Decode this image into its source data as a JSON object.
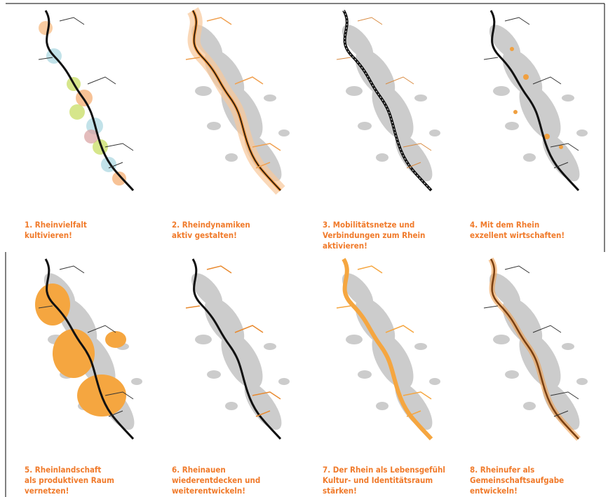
{
  "panels": [
    {
      "caption": {
        "lines": [
          "1. Rheinvielfalt",
          "kultivieren!"
        ]
      }
    },
    {
      "caption": {
        "lines": [
          "2. Rheindynamiken",
          "aktiv gestalten!"
        ]
      }
    },
    {
      "caption": {
        "lines": [
          "3. Mobilitätsnetze und",
          "Verbindungen zum Rhein",
          "aktivieren!"
        ]
      }
    },
    {
      "caption": {
        "lines": [
          "4. Mit dem Rhein",
          "exzellent wirtschaften!"
        ]
      }
    },
    {
      "caption": {
        "lines": [
          "5. Rheinlandschaft",
          "als produktiven Raum",
          "vernetzen!"
        ]
      }
    },
    {
      "caption": {
        "lines": [
          "6. Rheinauen",
          "wiederentdecken und",
          "weiterentwickeln!"
        ]
      }
    },
    {
      "caption": {
        "lines": [
          "7. Der Rhein als Lebensgefühl",
          "Kultur- und Identitätsraum",
          "stärken!"
        ]
      }
    },
    {
      "caption": {
        "lines": [
          "8. Rheinufer als",
          "Gemeinschaftsaufgabe",
          "entwickeln!"
        ]
      }
    }
  ]
}
